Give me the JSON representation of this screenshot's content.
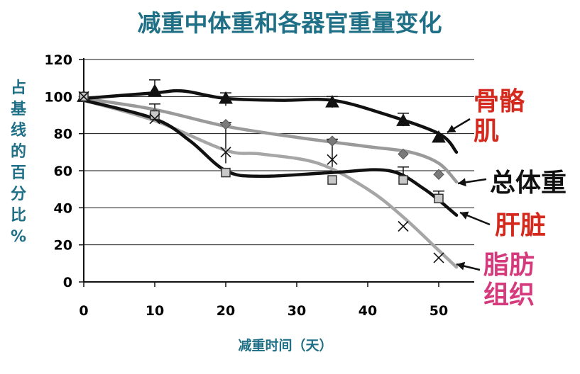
{
  "chart_data": {
    "type": "line",
    "title": "减重中体重和各器官重量变化",
    "xlabel": "减重时间（天）",
    "ylabel": "占基线的百分比%",
    "xlim": [
      0,
      55
    ],
    "ylim": [
      0,
      120
    ],
    "x_ticks": [
      0,
      10,
      20,
      30,
      40,
      50
    ],
    "y_ticks": [
      0,
      20,
      40,
      60,
      80,
      100,
      120
    ],
    "grid": true,
    "series": [
      {
        "name": "骨骼肌",
        "label_lines": [
          "骨骼",
          "肌"
        ],
        "label_color": "#d42a1e",
        "line_color": "#111111",
        "marker": "triangle",
        "x": [
          0,
          10,
          20,
          35,
          45,
          50
        ],
        "y": [
          100,
          103,
          99,
          97,
          87,
          78
        ],
        "curve": [
          [
            0,
            99
          ],
          [
            10,
            102
          ],
          [
            14,
            103
          ],
          [
            20,
            99
          ],
          [
            28,
            98
          ],
          [
            35,
            98
          ],
          [
            42,
            91
          ],
          [
            50,
            80
          ],
          [
            52.5,
            70
          ]
        ]
      },
      {
        "name": "总体重",
        "label_lines": [
          "总体重"
        ],
        "label_color": "#111111",
        "line_color": "#9a9a9a",
        "marker": "diamond",
        "x": [
          0,
          10,
          20,
          35,
          45,
          50
        ],
        "y": [
          100,
          91,
          85,
          76,
          69,
          58
        ],
        "curve": [
          [
            0,
            99
          ],
          [
            10,
            93
          ],
          [
            20,
            84
          ],
          [
            30,
            78
          ],
          [
            40,
            73
          ],
          [
            46,
            70
          ],
          [
            50,
            64
          ],
          [
            52.5,
            54
          ]
        ]
      },
      {
        "name": "肝脏",
        "label_lines": [
          "肝脏"
        ],
        "label_color": "#d42a1e",
        "line_color": "#111111",
        "marker": "square",
        "x": [
          0,
          10,
          20,
          35,
          45,
          50
        ],
        "y": [
          100,
          90,
          59,
          55,
          55,
          45
        ],
        "curve": [
          [
            0,
            98
          ],
          [
            10,
            88
          ],
          [
            15,
            76
          ],
          [
            20,
            60
          ],
          [
            25,
            57
          ],
          [
            35,
            59
          ],
          [
            43,
            60
          ],
          [
            48,
            50
          ],
          [
            52.5,
            36
          ]
        ]
      },
      {
        "name": "脂肪组织",
        "label_lines": [
          "脂肪",
          "组织"
        ],
        "label_color": "#d43a7c",
        "line_color": "#a6a6a6",
        "marker": "x",
        "x": [
          0,
          10,
          20,
          35,
          45,
          50
        ],
        "y": [
          100,
          88,
          70,
          66,
          30,
          13
        ],
        "curve": [
          [
            0,
            98
          ],
          [
            10,
            87
          ],
          [
            20,
            71
          ],
          [
            25,
            69
          ],
          [
            33,
            64
          ],
          [
            40,
            50
          ],
          [
            45,
            35
          ],
          [
            50,
            17
          ],
          [
            52.5,
            8
          ]
        ]
      }
    ],
    "error_bars": [
      {
        "x": 10,
        "low": 100,
        "high": 109
      },
      {
        "x": 20,
        "low": 95,
        "high": 102
      },
      {
        "x": 35,
        "low": 94,
        "high": 100
      },
      {
        "x": 45,
        "low": 84,
        "high": 91
      },
      {
        "x": 10,
        "low": 88,
        "high": 96
      },
      {
        "x": 20,
        "low": 64,
        "high": 86
      },
      {
        "x": 35,
        "low": 62,
        "high": 77
      },
      {
        "x": 45,
        "low": 55,
        "high": 62
      },
      {
        "x": 50,
        "low": 44,
        "high": 49
      }
    ]
  }
}
